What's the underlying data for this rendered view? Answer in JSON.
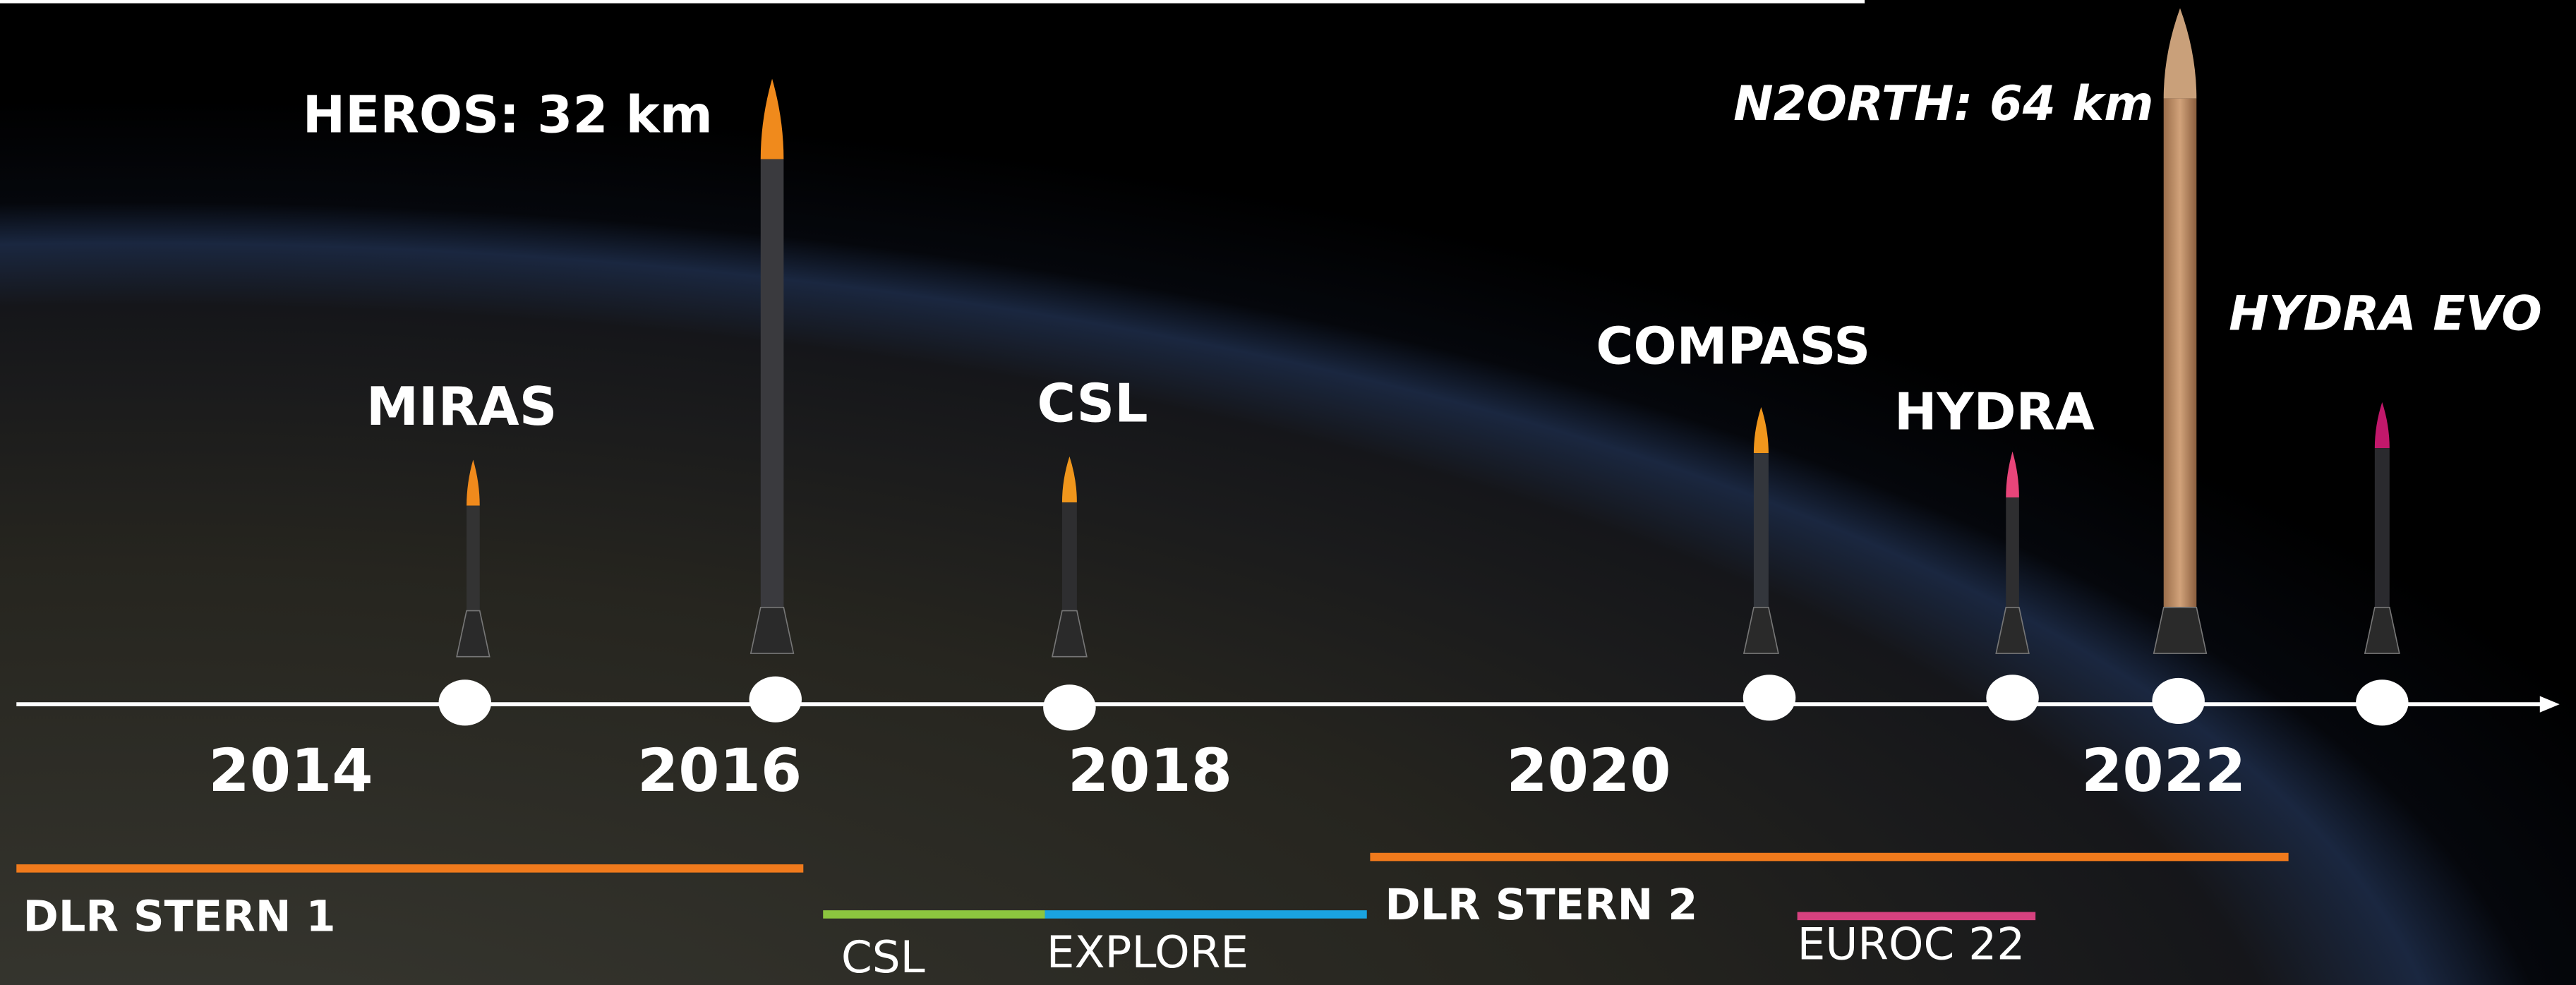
{
  "timeline": {
    "years": [
      "2014",
      "2016",
      "2018",
      "2020",
      "2022"
    ]
  },
  "rockets": [
    {
      "label": "MIRAS"
    },
    {
      "label": "HEROS: 32 km"
    },
    {
      "label": "CSL"
    },
    {
      "label": "COMPASS"
    },
    {
      "label": "HYDRA"
    },
    {
      "label": "N2ORTH: 64 km"
    },
    {
      "label": "HYDRA EVO"
    }
  ],
  "programs": [
    {
      "label": "DLR STERN 1"
    },
    {
      "label": "CSL"
    },
    {
      "label": "EXPLORE"
    },
    {
      "label": "DLR STERN 2"
    },
    {
      "label": "EUROC 22"
    }
  ]
}
